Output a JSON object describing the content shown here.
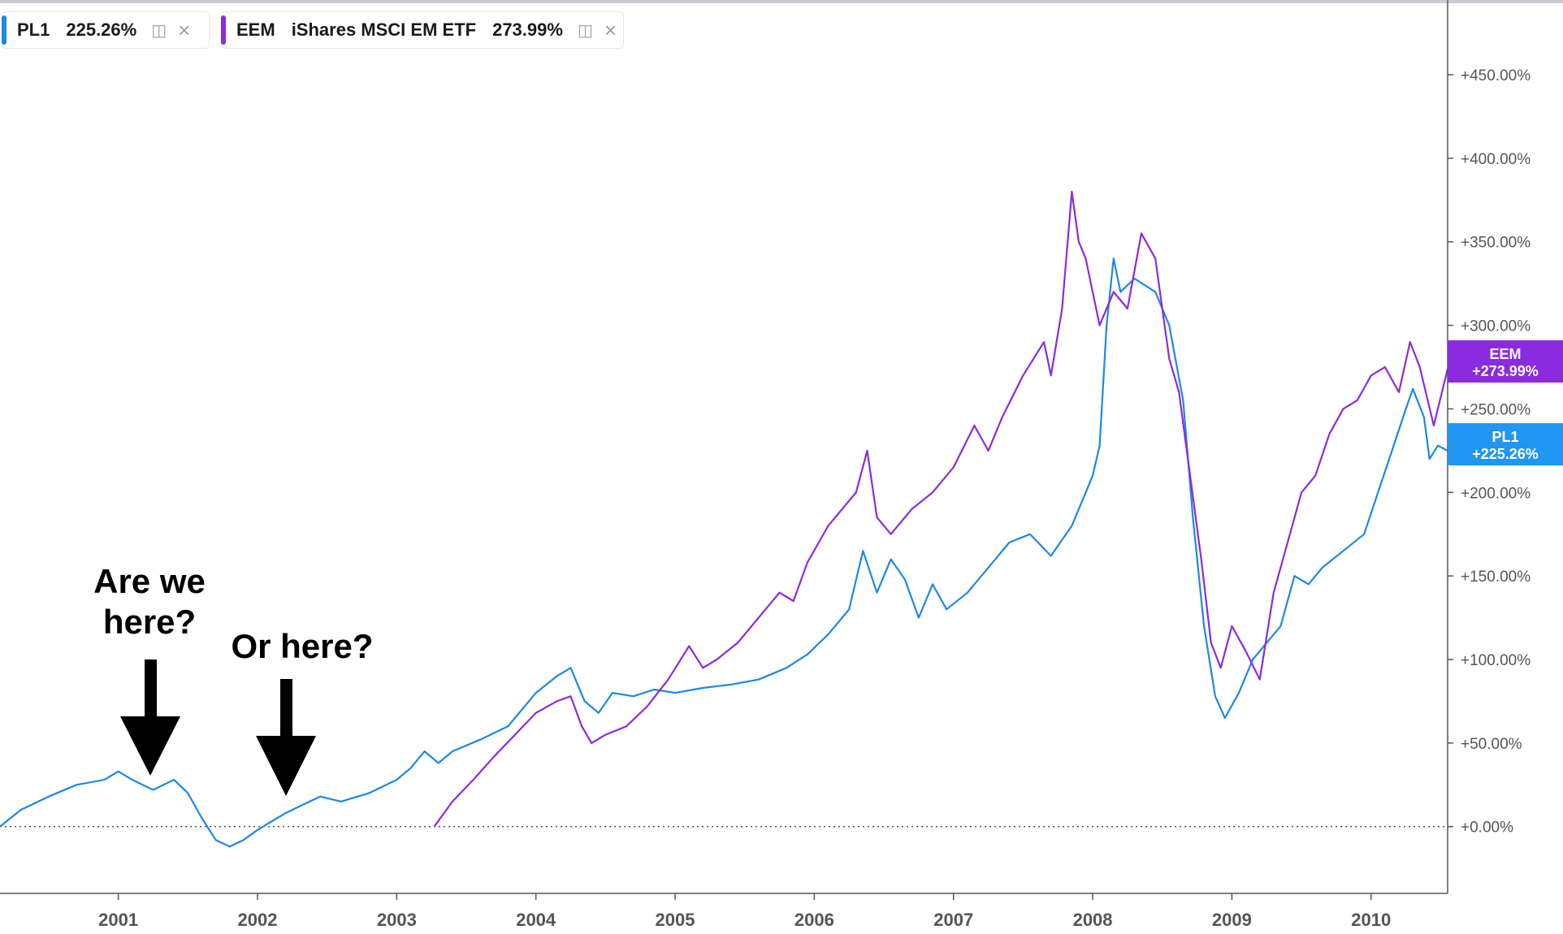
{
  "legend": {
    "pl1": {
      "symbol": "PL1",
      "value": "225.26%",
      "color": "#1e88e5"
    },
    "eem": {
      "symbol": "EEM",
      "name": "iShares MSCI EM ETF",
      "value": "273.99%",
      "color": "#8a2be2"
    },
    "icons": {
      "settings": "layers-add-icon",
      "close": "close-icon"
    }
  },
  "price_tags": {
    "eem": {
      "line1": "EEM",
      "line2": "+273.99%",
      "color": "#8a2be2"
    },
    "pl1": {
      "line1": "PL1",
      "line2": "+225.26%",
      "color": "#2196f3"
    }
  },
  "annotations": {
    "first": {
      "line1": "Are we",
      "line2": "here?"
    },
    "second": {
      "line1": "Or here?"
    }
  },
  "chart_data": {
    "type": "line",
    "title": "",
    "xlabel": "",
    "ylabel": "",
    "x_ticks": [
      "2001",
      "2002",
      "2003",
      "2004",
      "2005",
      "2006",
      "2007",
      "2008",
      "2009",
      "2010"
    ],
    "y_ticks": [
      "+450.00%",
      "+400.00%",
      "+350.00%",
      "+300.00%",
      "+250.00%",
      "+200.00%",
      "+150.00%",
      "+100.00%",
      "+50.00%",
      "+0.00%"
    ],
    "xlim": [
      2000.15,
      2010.55
    ],
    "ylim": [
      -40,
      485
    ],
    "baseline": 0,
    "series": [
      {
        "name": "PL1",
        "color": "#1e88e5",
        "points": [
          [
            2000.15,
            0
          ],
          [
            2000.3,
            10
          ],
          [
            2000.5,
            18
          ],
          [
            2000.7,
            25
          ],
          [
            2000.9,
            28
          ],
          [
            2001.0,
            33
          ],
          [
            2001.1,
            28
          ],
          [
            2001.25,
            22
          ],
          [
            2001.4,
            28
          ],
          [
            2001.5,
            20
          ],
          [
            2001.6,
            5
          ],
          [
            2001.7,
            -8
          ],
          [
            2001.8,
            -12
          ],
          [
            2001.9,
            -8
          ],
          [
            2002.0,
            -2
          ],
          [
            2002.1,
            3
          ],
          [
            2002.2,
            8
          ],
          [
            2002.3,
            12
          ],
          [
            2002.45,
            18
          ],
          [
            2002.6,
            15
          ],
          [
            2002.8,
            20
          ],
          [
            2003.0,
            28
          ],
          [
            2003.1,
            35
          ],
          [
            2003.2,
            45
          ],
          [
            2003.3,
            38
          ],
          [
            2003.4,
            45
          ],
          [
            2003.6,
            52
          ],
          [
            2003.8,
            60
          ],
          [
            2003.9,
            70
          ],
          [
            2004.0,
            80
          ],
          [
            2004.15,
            90
          ],
          [
            2004.25,
            95
          ],
          [
            2004.35,
            75
          ],
          [
            2004.45,
            68
          ],
          [
            2004.55,
            80
          ],
          [
            2004.7,
            78
          ],
          [
            2004.85,
            82
          ],
          [
            2005.0,
            80
          ],
          [
            2005.2,
            83
          ],
          [
            2005.4,
            85
          ],
          [
            2005.6,
            88
          ],
          [
            2005.8,
            95
          ],
          [
            2005.95,
            103
          ],
          [
            2006.1,
            115
          ],
          [
            2006.25,
            130
          ],
          [
            2006.35,
            165
          ],
          [
            2006.45,
            140
          ],
          [
            2006.55,
            160
          ],
          [
            2006.65,
            148
          ],
          [
            2006.75,
            125
          ],
          [
            2006.85,
            145
          ],
          [
            2006.95,
            130
          ],
          [
            2007.1,
            140
          ],
          [
            2007.25,
            155
          ],
          [
            2007.4,
            170
          ],
          [
            2007.55,
            175
          ],
          [
            2007.7,
            162
          ],
          [
            2007.85,
            180
          ],
          [
            2008.0,
            210
          ],
          [
            2008.05,
            228
          ],
          [
            2008.1,
            300
          ],
          [
            2008.15,
            340
          ],
          [
            2008.2,
            320
          ],
          [
            2008.3,
            328
          ],
          [
            2008.45,
            320
          ],
          [
            2008.55,
            300
          ],
          [
            2008.65,
            255
          ],
          [
            2008.72,
            185
          ],
          [
            2008.8,
            120
          ],
          [
            2008.88,
            78
          ],
          [
            2008.95,
            65
          ],
          [
            2009.05,
            80
          ],
          [
            2009.15,
            100
          ],
          [
            2009.25,
            110
          ],
          [
            2009.35,
            120
          ],
          [
            2009.45,
            150
          ],
          [
            2009.55,
            145
          ],
          [
            2009.65,
            155
          ],
          [
            2009.8,
            165
          ],
          [
            2009.95,
            175
          ],
          [
            2010.05,
            200
          ],
          [
            2010.15,
            225
          ],
          [
            2010.25,
            250
          ],
          [
            2010.3,
            262
          ],
          [
            2010.38,
            245
          ],
          [
            2010.42,
            220
          ],
          [
            2010.48,
            228
          ],
          [
            2010.55,
            225
          ]
        ]
      },
      {
        "name": "EEM",
        "color": "#8a2be2",
        "points": [
          [
            2003.27,
            0
          ],
          [
            2003.4,
            15
          ],
          [
            2003.55,
            28
          ],
          [
            2003.7,
            42
          ],
          [
            2003.85,
            55
          ],
          [
            2004.0,
            68
          ],
          [
            2004.15,
            75
          ],
          [
            2004.25,
            78
          ],
          [
            2004.33,
            60
          ],
          [
            2004.4,
            50
          ],
          [
            2004.5,
            55
          ],
          [
            2004.65,
            60
          ],
          [
            2004.8,
            72
          ],
          [
            2004.95,
            88
          ],
          [
            2005.1,
            108
          ],
          [
            2005.2,
            95
          ],
          [
            2005.3,
            100
          ],
          [
            2005.45,
            110
          ],
          [
            2005.6,
            125
          ],
          [
            2005.75,
            140
          ],
          [
            2005.85,
            135
          ],
          [
            2005.95,
            158
          ],
          [
            2006.1,
            180
          ],
          [
            2006.2,
            190
          ],
          [
            2006.3,
            200
          ],
          [
            2006.38,
            225
          ],
          [
            2006.45,
            185
          ],
          [
            2006.55,
            175
          ],
          [
            2006.7,
            190
          ],
          [
            2006.85,
            200
          ],
          [
            2007.0,
            215
          ],
          [
            2007.15,
            240
          ],
          [
            2007.25,
            225
          ],
          [
            2007.35,
            245
          ],
          [
            2007.5,
            270
          ],
          [
            2007.65,
            290
          ],
          [
            2007.7,
            270
          ],
          [
            2007.78,
            310
          ],
          [
            2007.85,
            380
          ],
          [
            2007.9,
            350
          ],
          [
            2007.95,
            340
          ],
          [
            2008.05,
            300
          ],
          [
            2008.15,
            320
          ],
          [
            2008.25,
            310
          ],
          [
            2008.35,
            355
          ],
          [
            2008.45,
            340
          ],
          [
            2008.55,
            280
          ],
          [
            2008.62,
            260
          ],
          [
            2008.7,
            210
          ],
          [
            2008.78,
            160
          ],
          [
            2008.85,
            110
          ],
          [
            2008.92,
            95
          ],
          [
            2009.0,
            120
          ],
          [
            2009.1,
            105
          ],
          [
            2009.2,
            88
          ],
          [
            2009.3,
            140
          ],
          [
            2009.4,
            170
          ],
          [
            2009.5,
            200
          ],
          [
            2009.6,
            210
          ],
          [
            2009.7,
            235
          ],
          [
            2009.8,
            250
          ],
          [
            2009.9,
            255
          ],
          [
            2010.0,
            270
          ],
          [
            2010.1,
            275
          ],
          [
            2010.2,
            260
          ],
          [
            2010.28,
            290
          ],
          [
            2010.35,
            275
          ],
          [
            2010.45,
            240
          ],
          [
            2010.55,
            274
          ]
        ]
      }
    ],
    "annotations": [
      {
        "text": "Are we here?",
        "x": 2001.23
      },
      {
        "text": "Or here?",
        "x": 2002.23
      }
    ]
  }
}
